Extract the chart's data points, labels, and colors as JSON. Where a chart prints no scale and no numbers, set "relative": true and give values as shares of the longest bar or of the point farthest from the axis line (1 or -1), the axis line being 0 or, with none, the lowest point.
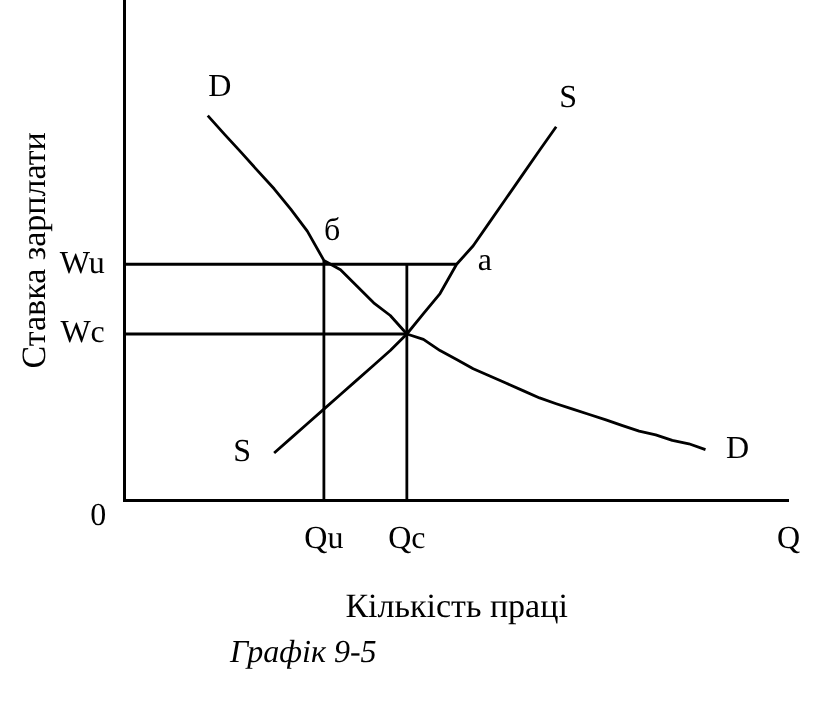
{
  "chart_data": {
    "type": "line",
    "relative": true,
    "xlabel": "Кількість праці",
    "ylabel": "Ставка зарплати",
    "legend": false,
    "grid": false,
    "marker": "none",
    "categories": [
      null,
      null,
      null,
      null,
      null,
      null,
      null,
      null,
      null,
      null,
      null,
      null,
      "Qu",
      null,
      null,
      null,
      null,
      "Qc",
      null,
      null,
      null,
      null,
      null,
      null,
      null,
      null,
      null,
      null,
      null,
      null,
      null,
      null,
      null,
      null,
      null,
      null,
      null,
      null,
      null,
      null,
      "Q"
    ],
    "series": [
      {
        "name": "D",
        "color": "#000000",
        "values": [
          null,
          null,
          null,
          null,
          null,
          1.0,
          0.952,
          0.905,
          0.857,
          0.81,
          0.757,
          0.7,
          0.624,
          0.6,
          0.557,
          0.514,
          0.481,
          0.433,
          0.419,
          0.39,
          0.367,
          0.343,
          0.324,
          0.305,
          0.286,
          0.267,
          0.252,
          0.238,
          0.224,
          0.21,
          0.195,
          0.181,
          0.171,
          0.157,
          0.148,
          0.133,
          null,
          null,
          null,
          null,
          null
        ]
      },
      {
        "name": "S",
        "color": "#000000",
        "values": [
          null,
          null,
          null,
          null,
          null,
          null,
          null,
          null,
          null,
          0.124,
          0.162,
          0.2,
          0.238,
          0.276,
          0.314,
          0.352,
          0.39,
          0.433,
          0.486,
          0.538,
          0.614,
          0.662,
          0.724,
          0.786,
          0.848,
          0.91,
          0.971,
          null,
          null,
          null,
          null,
          null,
          null,
          null,
          null,
          null,
          null,
          null,
          null,
          null,
          null
        ]
      },
      {
        "name": "Wu",
        "color": "#000000",
        "values": [
          0.614,
          0.614,
          0.614,
          0.614,
          0.614,
          0.614,
          0.614,
          0.614,
          0.614,
          0.614,
          0.614,
          0.614,
          0.614,
          0.614,
          0.614,
          0.614,
          0.614,
          0.614,
          0.614,
          0.614,
          0.614,
          null,
          null,
          null,
          null,
          null,
          null,
          null,
          null,
          null,
          null,
          null,
          null,
          null,
          null,
          null,
          null,
          null,
          null,
          null,
          null
        ]
      },
      {
        "name": "Wc",
        "color": "#000000",
        "values": [
          0.433,
          0.433,
          0.433,
          0.433,
          0.433,
          0.433,
          0.433,
          0.433,
          0.433,
          0.433,
          0.433,
          0.433,
          0.433,
          0.433,
          0.433,
          0.433,
          0.433,
          0.433,
          null,
          null,
          null,
          null,
          null,
          null,
          null,
          null,
          null,
          null,
          null,
          null,
          null,
          null,
          null,
          null,
          null,
          null,
          null,
          null,
          null,
          null,
          null
        ]
      }
    ],
    "ref_lines": [
      {
        "axis": "x",
        "value": "Qu",
        "color": "#000000"
      },
      {
        "axis": "x",
        "value": "Qc",
        "color": "#000000"
      }
    ],
    "annotations": [
      "б",
      "a",
      "0",
      "Графік 9-5"
    ]
  }
}
